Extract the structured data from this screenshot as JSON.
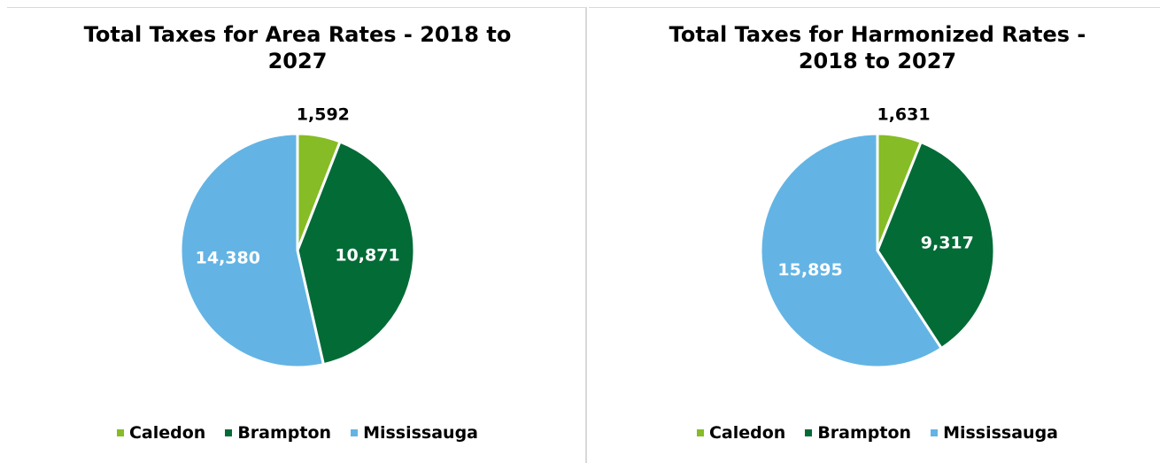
{
  "chart_data": [
    {
      "type": "pie",
      "title": "Total Taxes for Area Rates - 2018 to 2027",
      "labels": [
        "Caledon",
        "Brampton",
        "Mississauga"
      ],
      "values": [
        1592,
        10871,
        14380
      ],
      "value_labels": [
        "1,592",
        "10,871",
        "14,380"
      ],
      "colors": [
        "#86bc25",
        "#036b36",
        "#63b4e4"
      ]
    },
    {
      "type": "pie",
      "title": "Total Taxes for Harmonized Rates - 2018 to 2027",
      "labels": [
        "Caledon",
        "Brampton",
        "Mississauga"
      ],
      "values": [
        1631,
        9317,
        15895
      ],
      "value_labels": [
        "1,631",
        "9,317",
        "15,895"
      ],
      "colors": [
        "#86bc25",
        "#036b36",
        "#63b4e4"
      ]
    }
  ]
}
